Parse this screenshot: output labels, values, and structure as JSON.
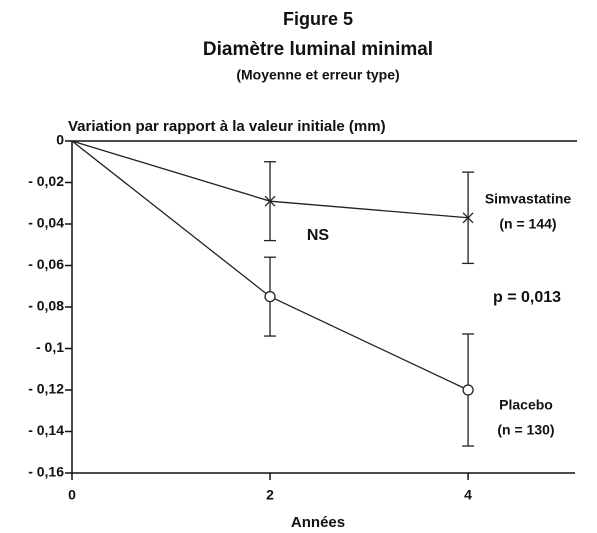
{
  "chart_data": {
    "type": "line",
    "title": "Figure 5",
    "subtitle": "Diamètre luminal minimal",
    "note": "(Moyenne et erreur type)",
    "ylabel": "Variation par rapport à la valeur initiale (mm)",
    "xlabel": "Années",
    "x": [
      0,
      2,
      4
    ],
    "series": [
      {
        "name": "Simvastatine",
        "n": "(n = 144)",
        "marker": "x",
        "color": "#222222",
        "values": [
          0,
          -0.029,
          -0.037
        ],
        "errors": [
          null,
          0.019,
          0.022
        ]
      },
      {
        "name": "Placebo",
        "n": "(n = 130)",
        "marker": "circle",
        "color": "#222222",
        "values": [
          0,
          -0.075,
          -0.12
        ],
        "errors": [
          null,
          0.019,
          0.027
        ]
      }
    ],
    "annotations": [
      "NS",
      "p = 0,013"
    ],
    "xlim": [
      0,
      5.1
    ],
    "xticks": [
      0,
      2,
      4
    ],
    "ylim": [
      -0.16,
      0
    ],
    "yticks": [
      0,
      {
        "value": -0.02,
        "label": "- 0,02"
      },
      {
        "value": -0.04,
        "label": "- 0,04"
      },
      {
        "value": -0.06,
        "label": "- 0,06"
      },
      {
        "value": -0.08,
        "label": "- 0,08"
      },
      {
        "value": -0.1,
        "label": "- 0,1"
      },
      {
        "value": -0.12,
        "label": "- 0,12"
      },
      {
        "value": -0.14,
        "label": "- 0,14"
      },
      {
        "value": -0.16,
        "label": "- 0,16"
      }
    ]
  }
}
